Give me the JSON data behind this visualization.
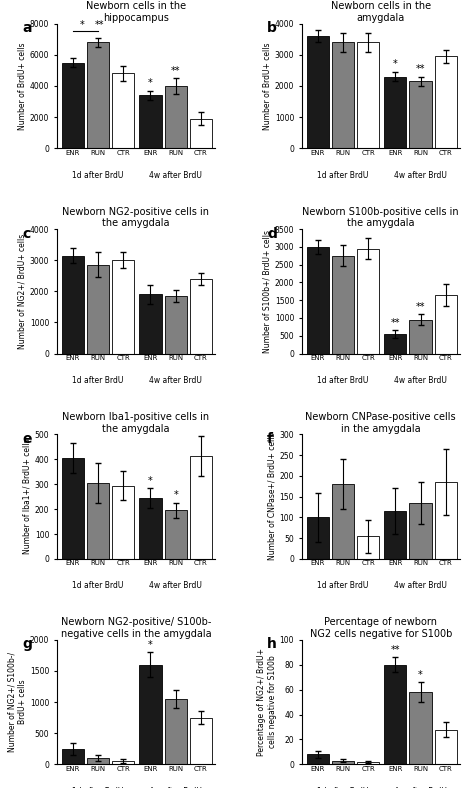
{
  "panels": [
    {
      "label": "a",
      "title": "Newborn cells in the\nhippocampus",
      "ylabel": "Number of BrdU+ cells",
      "ylim": [
        0,
        8000
      ],
      "yticks": [
        0,
        2000,
        4000,
        6000,
        8000
      ],
      "bars": {
        "1d": {
          "ENR": 5500,
          "RUN": 6800,
          "CTR": 4800
        },
        "4w": {
          "ENR": 3400,
          "RUN": 4000,
          "CTR": 1900
        }
      },
      "errors": {
        "1d": {
          "ENR": 300,
          "RUN": 300,
          "CTR": 500
        },
        "4w": {
          "ENR": 300,
          "RUN": 500,
          "CTR": 400
        }
      },
      "annotations": {
        "4w_ENR": "*",
        "4w_RUN": "**"
      },
      "bracket_1d": true
    },
    {
      "label": "b",
      "title": "Newborn cells in the\namygdala",
      "ylabel": "Number of BrdU+ cells",
      "ylim": [
        0,
        4000
      ],
      "yticks": [
        0,
        1000,
        2000,
        3000,
        4000
      ],
      "bars": {
        "1d": {
          "ENR": 3600,
          "RUN": 3400,
          "CTR": 3400
        },
        "4w": {
          "ENR": 2300,
          "RUN": 2150,
          "CTR": 2950
        }
      },
      "errors": {
        "1d": {
          "ENR": 200,
          "RUN": 300,
          "CTR": 300
        },
        "4w": {
          "ENR": 150,
          "RUN": 150,
          "CTR": 200
        }
      },
      "annotations": {
        "4w_ENR": "*",
        "4w_RUN": "**"
      },
      "bracket_1d": false
    },
    {
      "label": "c",
      "title": "Newborn NG2-positive cells in\nthe amygdala",
      "ylabel": "Number of NG2+/ BrdU+ cells",
      "ylim": [
        0,
        4000
      ],
      "yticks": [
        0,
        1000,
        2000,
        3000,
        4000
      ],
      "bars": {
        "1d": {
          "ENR": 3150,
          "RUN": 2850,
          "CTR": 3000
        },
        "4w": {
          "ENR": 1900,
          "RUN": 1850,
          "CTR": 2400
        }
      },
      "errors": {
        "1d": {
          "ENR": 250,
          "RUN": 400,
          "CTR": 250
        },
        "4w": {
          "ENR": 300,
          "RUN": 200,
          "CTR": 200
        }
      },
      "annotations": {},
      "bracket_1d": false
    },
    {
      "label": "d",
      "title": "Newborn S100b-positive cells in\nthe amygdala",
      "ylabel": "Number of S100b+/ BrdU+ cells",
      "ylim": [
        0,
        3500
      ],
      "yticks": [
        0,
        500,
        1000,
        1500,
        2000,
        2500,
        3000,
        3500
      ],
      "bars": {
        "1d": {
          "ENR": 3000,
          "RUN": 2750,
          "CTR": 2950
        },
        "4w": {
          "ENR": 550,
          "RUN": 950,
          "CTR": 1650
        }
      },
      "errors": {
        "1d": {
          "ENR": 200,
          "RUN": 300,
          "CTR": 300
        },
        "4w": {
          "ENR": 100,
          "RUN": 150,
          "CTR": 300
        }
      },
      "annotations": {
        "4w_ENR": "**",
        "4w_RUN": "**"
      },
      "bracket_1d": false
    },
    {
      "label": "e",
      "title": "Newborn Iba1-positive cells in\nthe amygdala",
      "ylabel": "Number of Iba1+/ BrdU+ cells",
      "ylim": [
        0,
        500
      ],
      "yticks": [
        0,
        100,
        200,
        300,
        400,
        500
      ],
      "bars": {
        "1d": {
          "ENR": 405,
          "RUN": 305,
          "CTR": 295
        },
        "4w": {
          "ENR": 245,
          "RUN": 195,
          "CTR": 415
        }
      },
      "errors": {
        "1d": {
          "ENR": 60,
          "RUN": 80,
          "CTR": 60
        },
        "4w": {
          "ENR": 40,
          "RUN": 30,
          "CTR": 80
        }
      },
      "annotations": {
        "4w_ENR": "*",
        "4w_RUN": "*"
      },
      "bracket_1d": false
    },
    {
      "label": "f",
      "title": "Newborn CNPase-positive cells\nin the amygdala",
      "ylabel": "Number of CNPase+/ BrdU+ cells",
      "ylim": [
        0,
        300
      ],
      "yticks": [
        0,
        50,
        100,
        150,
        200,
        250,
        300
      ],
      "bars": {
        "1d": {
          "ENR": 100,
          "RUN": 180,
          "CTR": 55
        },
        "4w": {
          "ENR": 115,
          "RUN": 135,
          "CTR": 185
        }
      },
      "errors": {
        "1d": {
          "ENR": 60,
          "RUN": 60,
          "CTR": 40
        },
        "4w": {
          "ENR": 55,
          "RUN": 50,
          "CTR": 80
        }
      },
      "annotations": {},
      "bracket_1d": false
    },
    {
      "label": "g",
      "title": "Newborn NG2-positive/ S100b-\nnegative cells in the amygdala",
      "ylabel": "Number of NG2+/ S100b-/\nBrdU+ cells",
      "ylim": [
        0,
        2000
      ],
      "yticks": [
        0,
        500,
        1000,
        1500,
        2000
      ],
      "bars": {
        "1d": {
          "ENR": 250,
          "RUN": 100,
          "CTR": 50
        },
        "4w": {
          "ENR": 1600,
          "RUN": 1050,
          "CTR": 750
        }
      },
      "errors": {
        "1d": {
          "ENR": 100,
          "RUN": 50,
          "CTR": 30
        },
        "4w": {
          "ENR": 200,
          "RUN": 150,
          "CTR": 100
        }
      },
      "annotations": {
        "4w_ENR": "*"
      },
      "bracket_1d": false
    },
    {
      "label": "h",
      "title": "Percentage of newborn\nNG2 cells negative for S100b",
      "ylabel": "Percentage of NG2+/ BrdU+\ncells negative for S100b",
      "ylim": [
        0,
        100
      ],
      "yticks": [
        0,
        20,
        40,
        60,
        80,
        100
      ],
      "bars": {
        "1d": {
          "ENR": 8,
          "RUN": 3,
          "CTR": 2
        },
        "4w": {
          "ENR": 80,
          "RUN": 58,
          "CTR": 28
        }
      },
      "errors": {
        "1d": {
          "ENR": 3,
          "RUN": 1.5,
          "CTR": 1
        },
        "4w": {
          "ENR": 6,
          "RUN": 8,
          "CTR": 6
        }
      },
      "annotations": {
        "4w_ENR": "**",
        "4w_RUN": "*"
      },
      "bracket_1d": false
    }
  ],
  "colors": {
    "ENR": "#1a1a1a",
    "RUN": "#808080",
    "CTR": "#ffffff"
  },
  "bar_width": 0.22,
  "edgecolor": "#000000"
}
